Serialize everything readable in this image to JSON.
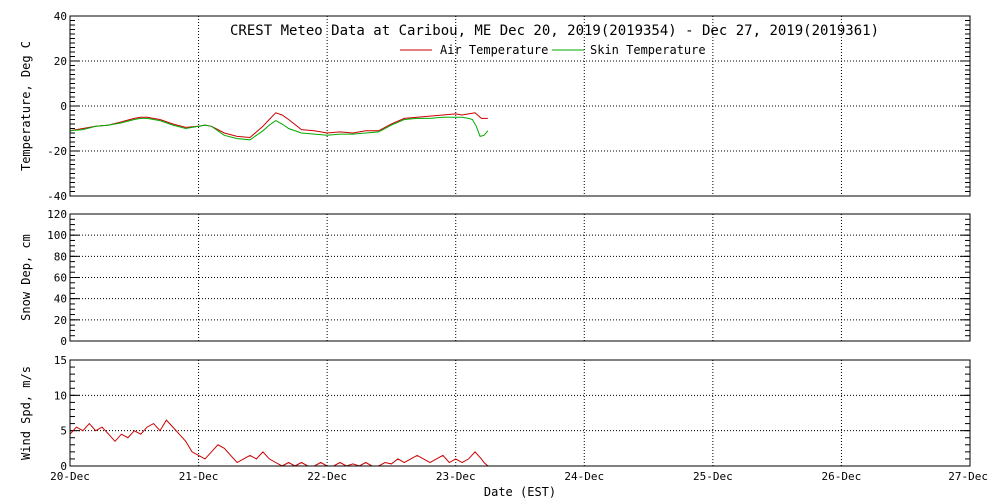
{
  "header": {
    "title": "CREST Meteo Data at Caribou, ME   Dec 20, 2019(2019354) - Dec 27, 2019(2019361)"
  },
  "x_axis": {
    "label": "Date (EST)",
    "tick_labels": [
      "20-Dec",
      "21-Dec",
      "22-Dec",
      "23-Dec",
      "24-Dec",
      "25-Dec",
      "26-Dec",
      "27-Dec"
    ],
    "xlim": [
      0,
      7
    ]
  },
  "colors": {
    "air": "#cc0000",
    "skin": "#00aa00",
    "wind": "#cc0000"
  },
  "chart_data": [
    {
      "type": "line",
      "ylabel": "Temperature, Deg C",
      "ylim": [
        -40,
        40
      ],
      "yticks": [
        -40,
        -20,
        0,
        20,
        40
      ],
      "grid": true,
      "legend_placement": "top-center",
      "series": [
        {
          "name": "Air Temperature",
          "x": [
            0.0,
            0.1,
            0.2,
            0.3,
            0.4,
            0.5,
            0.55,
            0.6,
            0.7,
            0.8,
            0.9,
            1.0,
            1.05,
            1.1,
            1.15,
            1.2,
            1.3,
            1.4,
            1.5,
            1.55,
            1.6,
            1.65,
            1.7,
            1.8,
            1.9,
            2.0,
            2.1,
            2.2,
            2.3,
            2.4,
            2.5,
            2.6,
            2.7,
            2.8,
            2.9,
            3.0,
            3.05,
            3.1,
            3.15,
            3.18,
            3.2,
            3.25
          ],
          "values": [
            -11,
            -10,
            -9,
            -8.5,
            -7,
            -5.5,
            -5,
            -5,
            -6,
            -8,
            -9.5,
            -9,
            -8.5,
            -9,
            -10.5,
            -12,
            -13.5,
            -14,
            -9,
            -6,
            -3,
            -4,
            -6,
            -10.5,
            -11,
            -12,
            -11.5,
            -12,
            -11,
            -11,
            -8,
            -5.5,
            -5,
            -4.5,
            -4,
            -3.5,
            -4,
            -3.5,
            -3,
            -4.5,
            -5.5,
            -5.5
          ]
        },
        {
          "name": "Skin Temperature",
          "x": [
            0.0,
            0.1,
            0.2,
            0.3,
            0.4,
            0.5,
            0.55,
            0.6,
            0.7,
            0.8,
            0.9,
            1.0,
            1.05,
            1.1,
            1.15,
            1.2,
            1.3,
            1.4,
            1.5,
            1.55,
            1.6,
            1.65,
            1.7,
            1.8,
            1.9,
            2.0,
            2.1,
            2.2,
            2.3,
            2.4,
            2.5,
            2.6,
            2.7,
            2.8,
            2.9,
            3.0,
            3.05,
            3.1,
            3.13,
            3.16,
            3.19,
            3.22,
            3.25
          ],
          "values": [
            -11,
            -10.5,
            -9,
            -8.5,
            -7.5,
            -6,
            -5.5,
            -5.5,
            -6.5,
            -8.5,
            -10,
            -9,
            -8.5,
            -9,
            -11,
            -13,
            -14.5,
            -15,
            -11,
            -8.5,
            -6.5,
            -8,
            -10,
            -12,
            -12.5,
            -13,
            -12.5,
            -12.5,
            -12,
            -11.5,
            -8.5,
            -6,
            -5.5,
            -5.5,
            -5,
            -5,
            -5,
            -5.5,
            -6,
            -9,
            -13.5,
            -13,
            -11
          ]
        }
      ]
    },
    {
      "type": "line",
      "ylabel": "Snow Dep, cm",
      "ylim": [
        0,
        120
      ],
      "yticks": [
        0,
        20,
        40,
        60,
        80,
        100,
        120
      ],
      "grid": true,
      "series": []
    },
    {
      "type": "line",
      "ylabel": "Wind Spd, m/s",
      "ylim": [
        0,
        15
      ],
      "yticks": [
        0,
        5,
        10,
        15
      ],
      "grid": true,
      "series": [
        {
          "x": [
            0.0,
            0.05,
            0.1,
            0.15,
            0.2,
            0.25,
            0.3,
            0.35,
            0.4,
            0.45,
            0.5,
            0.55,
            0.6,
            0.65,
            0.7,
            0.75,
            0.8,
            0.85,
            0.9,
            0.95,
            1.0,
            1.05,
            1.1,
            1.15,
            1.2,
            1.25,
            1.3,
            1.35,
            1.4,
            1.45,
            1.5,
            1.55,
            1.6,
            1.65,
            1.7,
            1.75,
            1.8,
            1.85,
            1.9,
            1.95,
            2.0,
            2.05,
            2.1,
            2.15,
            2.2,
            2.25,
            2.3,
            2.35,
            2.4,
            2.45,
            2.5,
            2.55,
            2.6,
            2.65,
            2.7,
            2.75,
            2.8,
            2.85,
            2.9,
            2.95,
            3.0,
            3.05,
            3.1,
            3.15,
            3.2,
            3.22,
            3.25
          ],
          "values": [
            4.5,
            5.5,
            5.0,
            6.0,
            5.0,
            5.5,
            4.5,
            3.5,
            4.5,
            4.0,
            5.0,
            4.5,
            5.5,
            6.0,
            5.0,
            6.5,
            5.5,
            4.5,
            3.5,
            2.0,
            1.5,
            1.0,
            2.0,
            3.0,
            2.5,
            1.5,
            0.5,
            1.0,
            1.5,
            1.0,
            2.0,
            1.0,
            0.5,
            0.0,
            0.5,
            0.0,
            0.5,
            0.0,
            0.0,
            0.5,
            0.0,
            0.0,
            0.5,
            0.0,
            0.3,
            0.0,
            0.5,
            0.0,
            0.0,
            0.5,
            0.3,
            1.0,
            0.5,
            1.0,
            1.5,
            1.0,
            0.5,
            1.0,
            1.5,
            0.5,
            1.0,
            0.5,
            1.0,
            2.0,
            1.0,
            0.5,
            0.0
          ]
        }
      ]
    }
  ]
}
